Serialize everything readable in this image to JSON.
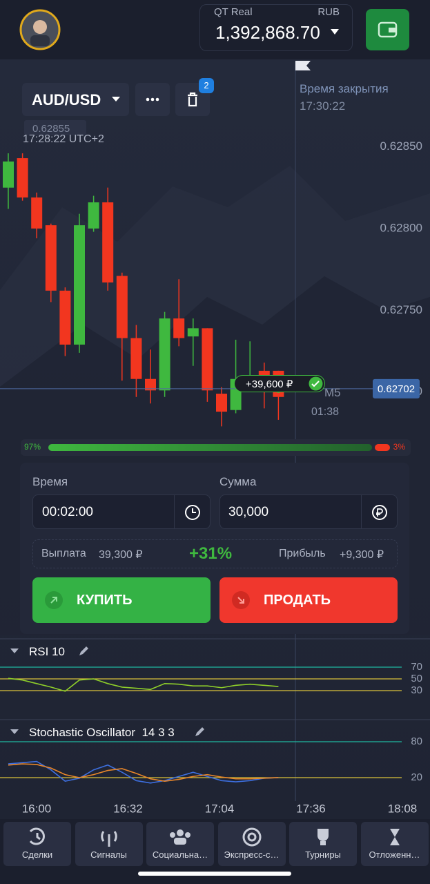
{
  "header": {
    "account_type": "QT Real",
    "currency": "RUB",
    "balance": "1,392,868.70"
  },
  "chart": {
    "asset": "AUD/USD",
    "delete_badge": "2",
    "close_time_label": "Время закрытия",
    "close_time": "17:30:22",
    "price_marker": "0.62855",
    "clock": "17:28:22 UTC+2",
    "ylim": [
      0.62661,
      0.62903
    ],
    "yticks": [
      {
        "value": 0.6285,
        "label": "0.62850"
      },
      {
        "value": 0.628,
        "label": "0.62800"
      },
      {
        "value": 0.6275,
        "label": "0.62750"
      },
      {
        "value": 0.627,
        "label": "0.62700"
      }
    ],
    "candles": [
      {
        "open": 0.62825,
        "high": 0.62846,
        "low": 0.62812,
        "close": 0.62841
      },
      {
        "open": 0.62843,
        "high": 0.62846,
        "low": 0.62817,
        "close": 0.62819
      },
      {
        "open": 0.62819,
        "high": 0.62822,
        "low": 0.62794,
        "close": 0.628
      },
      {
        "open": 0.62802,
        "high": 0.62803,
        "low": 0.62755,
        "close": 0.62762
      },
      {
        "open": 0.62762,
        "high": 0.62764,
        "low": 0.62722,
        "close": 0.62729
      },
      {
        "open": 0.62729,
        "high": 0.62809,
        "low": 0.62724,
        "close": 0.62802
      },
      {
        "open": 0.628,
        "high": 0.6282,
        "low": 0.62798,
        "close": 0.62816
      },
      {
        "open": 0.62816,
        "high": 0.62825,
        "low": 0.62762,
        "close": 0.62767
      },
      {
        "open": 0.62771,
        "high": 0.62773,
        "low": 0.62707,
        "close": 0.62733
      },
      {
        "open": 0.62733,
        "high": 0.62741,
        "low": 0.62697,
        "close": 0.62708
      },
      {
        "open": 0.62708,
        "high": 0.62726,
        "low": 0.62693,
        "close": 0.62701
      },
      {
        "open": 0.62701,
        "high": 0.62749,
        "low": 0.62697,
        "close": 0.62745
      },
      {
        "open": 0.62745,
        "high": 0.62769,
        "low": 0.62728,
        "close": 0.62733
      },
      {
        "open": 0.62734,
        "high": 0.62745,
        "low": 0.62716,
        "close": 0.62739
      },
      {
        "open": 0.62739,
        "high": 0.62739,
        "low": 0.62694,
        "close": 0.62701
      },
      {
        "open": 0.62699,
        "high": 0.62703,
        "low": 0.62679,
        "close": 0.62688
      },
      {
        "open": 0.62689,
        "high": 0.62732,
        "low": 0.62687,
        "close": 0.62708
      },
      {
        "open": 0.62703,
        "high": 0.62731,
        "low": 0.62701,
        "close": 0.62708
      },
      {
        "open": 0.62713,
        "high": 0.62718,
        "low": 0.6269,
        "close": 0.62708
      },
      {
        "open": 0.62713,
        "high": 0.62713,
        "low": 0.62683,
        "close": 0.62697
      }
    ],
    "up_color": "#3fb83f",
    "down_color": "#f2361f",
    "current_price": {
      "value": 0.62702,
      "label": "0.62702"
    },
    "timeframe": "M5",
    "timer": "01:38",
    "trade_badge": "+39,600 ₽"
  },
  "sentiment": {
    "buy": {
      "value": 97,
      "label": "97%"
    },
    "sell": {
      "value": 3,
      "label": "3%"
    }
  },
  "form": {
    "time_label": "Время",
    "time_value": "00:02:00",
    "amount_label": "Сумма",
    "amount_value": "30,000",
    "payout_label": "Выплата",
    "payout_value": "39,300 ₽",
    "percent": "+31%",
    "profit_label": "Прибыль",
    "profit_value": "+9,300 ₽",
    "buy": "КУПИТЬ",
    "sell": "ПРОДАТЬ"
  },
  "rsi": {
    "name": "RSI",
    "period": "10",
    "ylim": [
      0,
      100
    ],
    "yticks": [
      70,
      50,
      30
    ],
    "color": "#8fcf2a",
    "values": [
      51,
      48,
      42,
      36,
      29,
      48,
      50,
      42,
      36,
      34,
      32,
      42,
      41,
      38,
      38,
      35,
      39,
      41,
      39,
      37
    ]
  },
  "stochastic": {
    "name": "Stochastic Oscillator",
    "params": "14 3 3",
    "ylim": [
      0,
      100
    ],
    "yticks": [
      80,
      20
    ],
    "series": [
      {
        "color": "#3d6fe0",
        "values": [
          43,
          45,
          47,
          33,
          14,
          19,
          33,
          41,
          29,
          15,
          11,
          15,
          22,
          29,
          22,
          15,
          13,
          15,
          19,
          20
        ]
      },
      {
        "color": "#e8862a",
        "values": [
          41,
          43,
          42,
          36,
          25,
          20,
          25,
          32,
          35,
          27,
          18,
          14,
          17,
          22,
          25,
          21,
          18,
          18,
          19,
          20
        ]
      }
    ]
  },
  "xticks": [
    "16:00",
    "16:32",
    "17:04",
    "17:36",
    "18:08"
  ],
  "nav": [
    "Сделки",
    "Сигналы",
    "Социальна…",
    "Экспресс-с…",
    "Турниры",
    "Отложенн…"
  ]
}
